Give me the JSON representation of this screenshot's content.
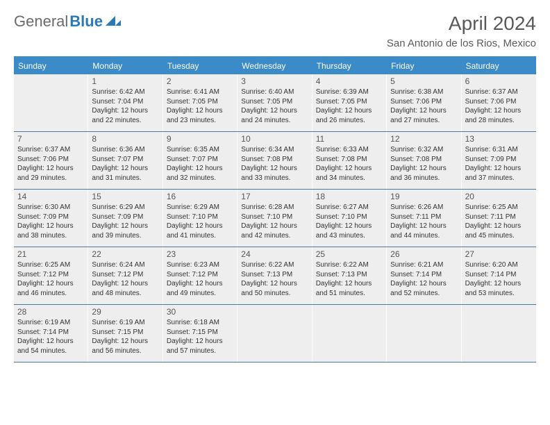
{
  "logo": {
    "part1": "General",
    "part2": "Blue"
  },
  "title": "April 2024",
  "location": "San Antonio de los Rios, Mexico",
  "header_color": "#3b8bc8",
  "cell_bg": "#eeeeee",
  "dow": [
    "Sunday",
    "Monday",
    "Tuesday",
    "Wednesday",
    "Thursday",
    "Friday",
    "Saturday"
  ],
  "weeks": [
    [
      null,
      {
        "n": "1",
        "sr": "6:42 AM",
        "ss": "7:04 PM",
        "dl": "12 hours and 22 minutes."
      },
      {
        "n": "2",
        "sr": "6:41 AM",
        "ss": "7:05 PM",
        "dl": "12 hours and 23 minutes."
      },
      {
        "n": "3",
        "sr": "6:40 AM",
        "ss": "7:05 PM",
        "dl": "12 hours and 24 minutes."
      },
      {
        "n": "4",
        "sr": "6:39 AM",
        "ss": "7:05 PM",
        "dl": "12 hours and 26 minutes."
      },
      {
        "n": "5",
        "sr": "6:38 AM",
        "ss": "7:06 PM",
        "dl": "12 hours and 27 minutes."
      },
      {
        "n": "6",
        "sr": "6:37 AM",
        "ss": "7:06 PM",
        "dl": "12 hours and 28 minutes."
      }
    ],
    [
      {
        "n": "7",
        "sr": "6:37 AM",
        "ss": "7:06 PM",
        "dl": "12 hours and 29 minutes."
      },
      {
        "n": "8",
        "sr": "6:36 AM",
        "ss": "7:07 PM",
        "dl": "12 hours and 31 minutes."
      },
      {
        "n": "9",
        "sr": "6:35 AM",
        "ss": "7:07 PM",
        "dl": "12 hours and 32 minutes."
      },
      {
        "n": "10",
        "sr": "6:34 AM",
        "ss": "7:08 PM",
        "dl": "12 hours and 33 minutes."
      },
      {
        "n": "11",
        "sr": "6:33 AM",
        "ss": "7:08 PM",
        "dl": "12 hours and 34 minutes."
      },
      {
        "n": "12",
        "sr": "6:32 AM",
        "ss": "7:08 PM",
        "dl": "12 hours and 36 minutes."
      },
      {
        "n": "13",
        "sr": "6:31 AM",
        "ss": "7:09 PM",
        "dl": "12 hours and 37 minutes."
      }
    ],
    [
      {
        "n": "14",
        "sr": "6:30 AM",
        "ss": "7:09 PM",
        "dl": "12 hours and 38 minutes."
      },
      {
        "n": "15",
        "sr": "6:29 AM",
        "ss": "7:09 PM",
        "dl": "12 hours and 39 minutes."
      },
      {
        "n": "16",
        "sr": "6:29 AM",
        "ss": "7:10 PM",
        "dl": "12 hours and 41 minutes."
      },
      {
        "n": "17",
        "sr": "6:28 AM",
        "ss": "7:10 PM",
        "dl": "12 hours and 42 minutes."
      },
      {
        "n": "18",
        "sr": "6:27 AM",
        "ss": "7:10 PM",
        "dl": "12 hours and 43 minutes."
      },
      {
        "n": "19",
        "sr": "6:26 AM",
        "ss": "7:11 PM",
        "dl": "12 hours and 44 minutes."
      },
      {
        "n": "20",
        "sr": "6:25 AM",
        "ss": "7:11 PM",
        "dl": "12 hours and 45 minutes."
      }
    ],
    [
      {
        "n": "21",
        "sr": "6:25 AM",
        "ss": "7:12 PM",
        "dl": "12 hours and 46 minutes."
      },
      {
        "n": "22",
        "sr": "6:24 AM",
        "ss": "7:12 PM",
        "dl": "12 hours and 48 minutes."
      },
      {
        "n": "23",
        "sr": "6:23 AM",
        "ss": "7:12 PM",
        "dl": "12 hours and 49 minutes."
      },
      {
        "n": "24",
        "sr": "6:22 AM",
        "ss": "7:13 PM",
        "dl": "12 hours and 50 minutes."
      },
      {
        "n": "25",
        "sr": "6:22 AM",
        "ss": "7:13 PM",
        "dl": "12 hours and 51 minutes."
      },
      {
        "n": "26",
        "sr": "6:21 AM",
        "ss": "7:14 PM",
        "dl": "12 hours and 52 minutes."
      },
      {
        "n": "27",
        "sr": "6:20 AM",
        "ss": "7:14 PM",
        "dl": "12 hours and 53 minutes."
      }
    ],
    [
      {
        "n": "28",
        "sr": "6:19 AM",
        "ss": "7:14 PM",
        "dl": "12 hours and 54 minutes."
      },
      {
        "n": "29",
        "sr": "6:19 AM",
        "ss": "7:15 PM",
        "dl": "12 hours and 56 minutes."
      },
      {
        "n": "30",
        "sr": "6:18 AM",
        "ss": "7:15 PM",
        "dl": "12 hours and 57 minutes."
      },
      null,
      null,
      null,
      null
    ]
  ],
  "labels": {
    "sunrise": "Sunrise:",
    "sunset": "Sunset:",
    "daylight": "Daylight:"
  }
}
